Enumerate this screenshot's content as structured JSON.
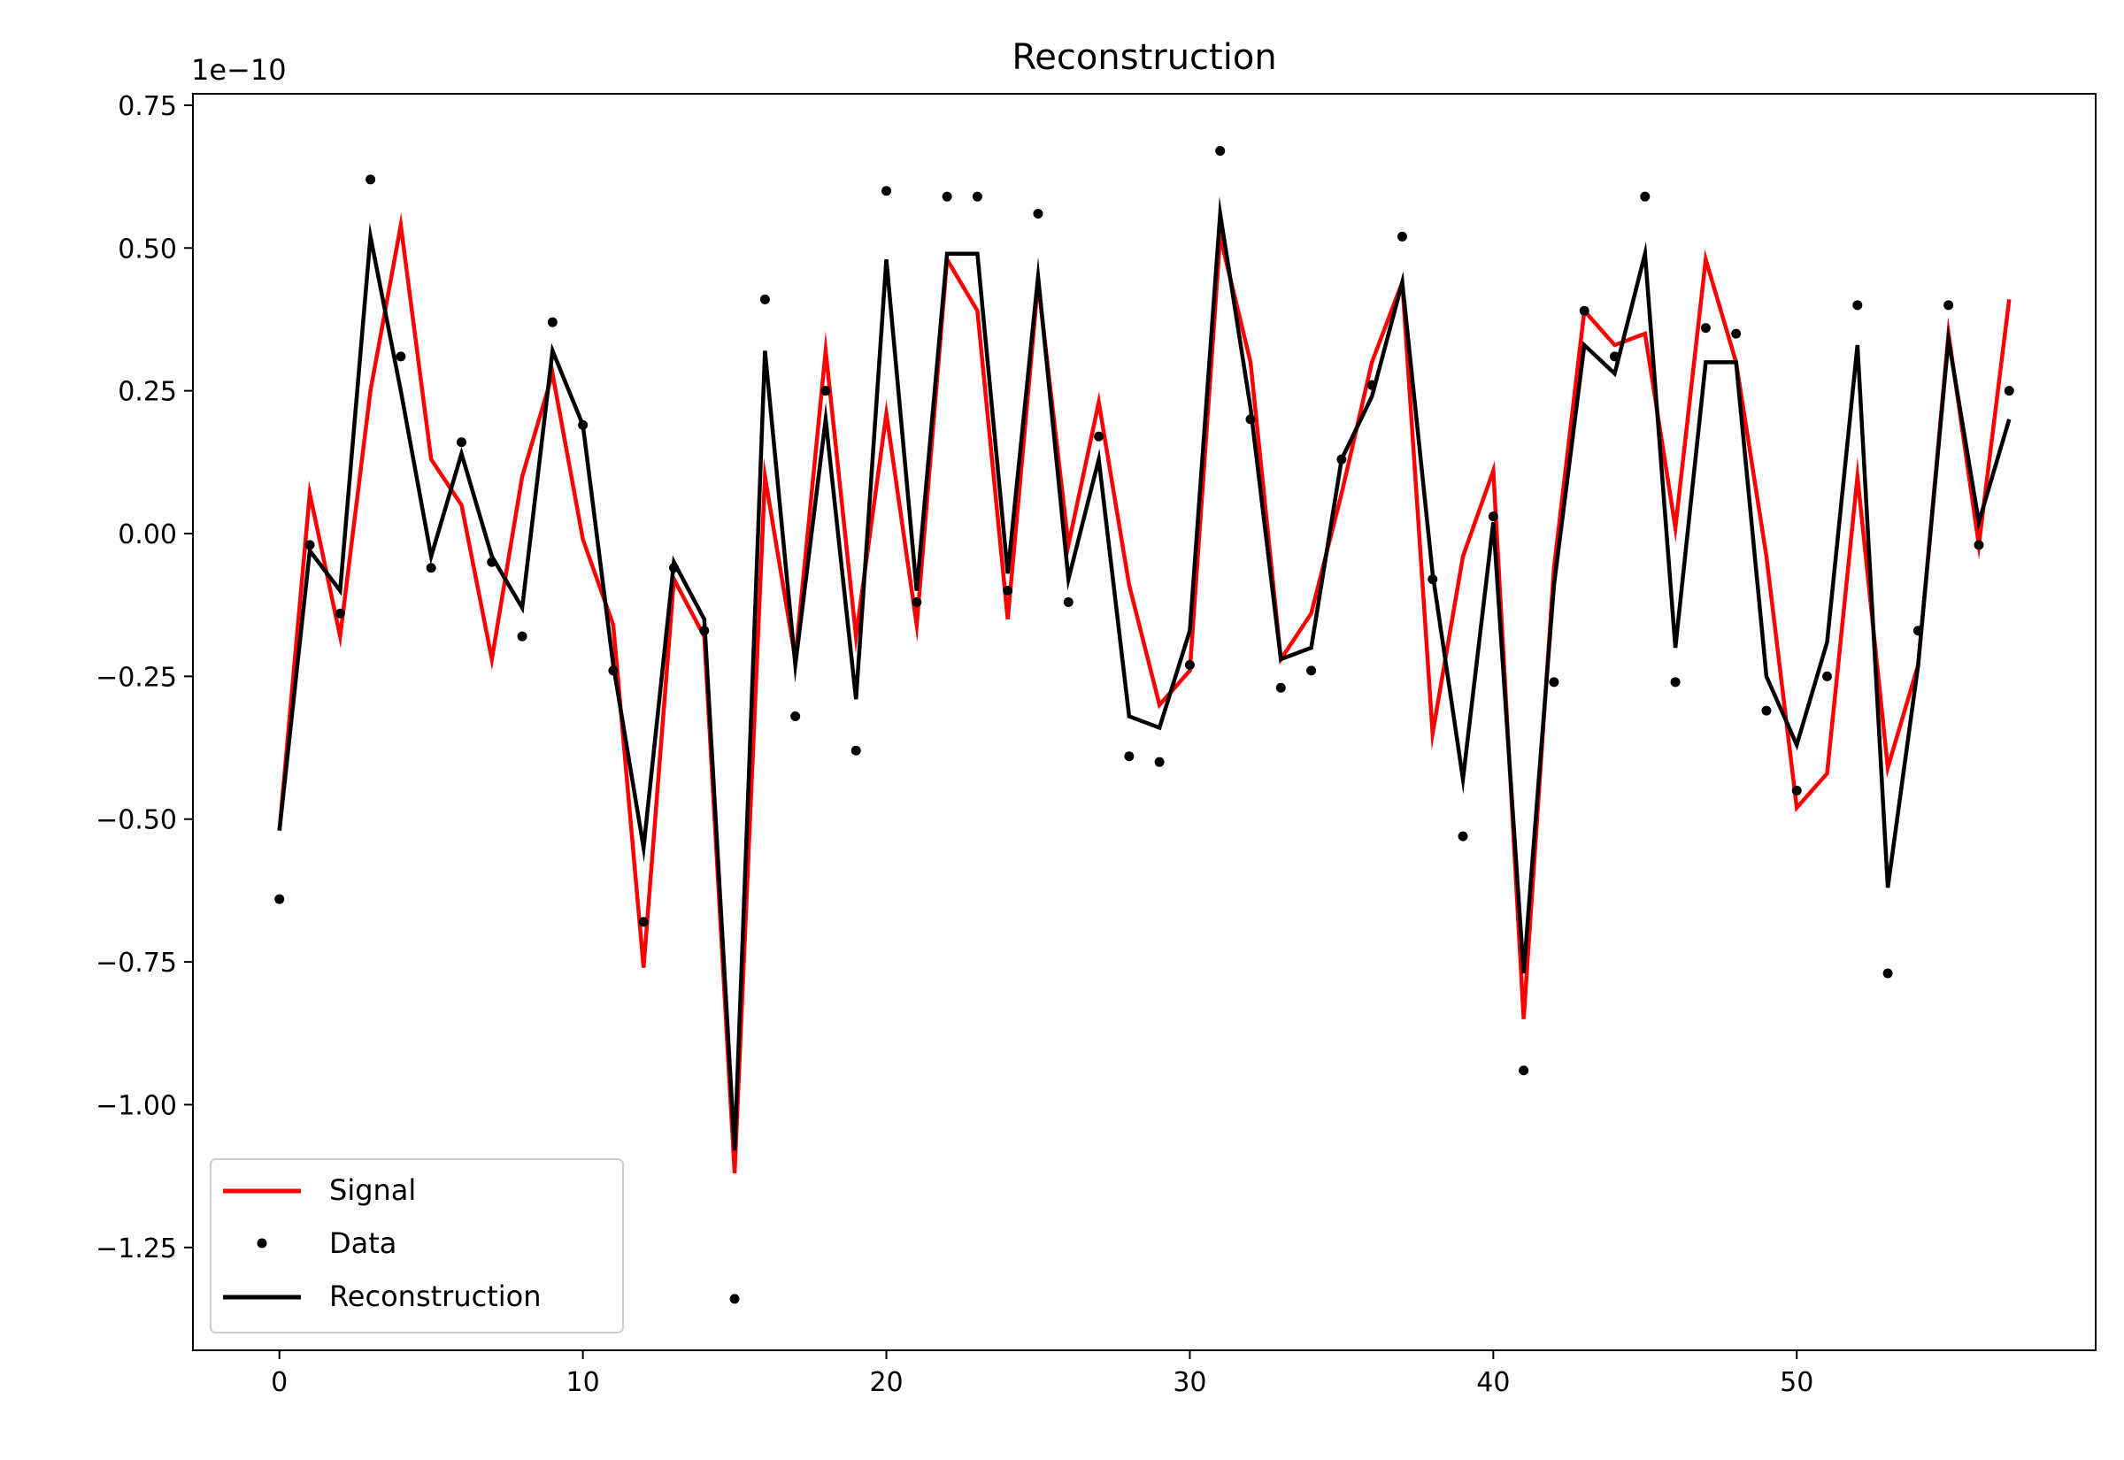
{
  "chart_data": {
    "type": "line",
    "title": "Reconstruction",
    "xlabel": "",
    "ylabel": "",
    "y_offset_label": "1e−10",
    "xlim": [
      -2.85,
      59.85
    ],
    "ylim": [
      -1.43,
      0.77
    ],
    "x_ticks": [
      0,
      10,
      20,
      30,
      40,
      50
    ],
    "x_tick_labels": [
      "0",
      "10",
      "20",
      "30",
      "40",
      "50"
    ],
    "y_ticks": [
      0.75,
      0.5,
      0.25,
      0.0,
      -0.25,
      -0.5,
      -0.75,
      -1.0,
      -1.25
    ],
    "y_tick_labels": [
      "0.75",
      "0.50",
      "0.25",
      "0.00",
      "−0.25",
      "−0.50",
      "−0.75",
      "−1.00",
      "−1.25"
    ],
    "grid": false,
    "legend_position": "lower-left",
    "series": [
      {
        "name": "Signal",
        "style": "line",
        "color": "#ff0000",
        "values": [
          -0.52,
          0.07,
          -0.18,
          0.25,
          0.54,
          0.13,
          0.05,
          -0.22,
          0.1,
          0.28,
          -0.01,
          -0.16,
          -0.76,
          -0.08,
          -0.18,
          -1.12,
          0.1,
          -0.22,
          0.32,
          -0.18,
          0.21,
          -0.16,
          0.48,
          0.39,
          -0.15,
          0.44,
          -0.02,
          0.23,
          -0.09,
          -0.3,
          -0.24,
          0.52,
          0.3,
          -0.22,
          -0.14,
          0.07,
          0.3,
          0.44,
          -0.35,
          -0.04,
          0.11,
          -0.85,
          -0.06,
          0.39,
          0.33,
          0.35,
          0.01,
          0.48,
          0.3,
          -0.04,
          -0.48,
          -0.42,
          0.1,
          -0.41,
          -0.23,
          0.35,
          -0.02,
          0.41
        ]
      },
      {
        "name": "Data",
        "style": "points",
        "color": "#000000",
        "values": [
          -0.64,
          -0.02,
          -0.14,
          0.62,
          0.31,
          -0.06,
          0.16,
          -0.05,
          -0.18,
          0.37,
          0.19,
          -0.24,
          -0.68,
          -0.06,
          -0.17,
          -1.34,
          0.41,
          -0.32,
          0.25,
          -0.38,
          0.6,
          -0.12,
          0.59,
          0.59,
          -0.1,
          0.56,
          -0.12,
          0.17,
          -0.39,
          -0.4,
          -0.23,
          0.67,
          0.2,
          -0.27,
          -0.24,
          0.13,
          0.26,
          0.52,
          -0.08,
          -0.53,
          0.03,
          -0.94,
          -0.26,
          0.39,
          0.31,
          0.59,
          -0.26,
          0.36,
          0.35,
          -0.31,
          -0.45,
          -0.25,
          0.4,
          -0.77,
          -0.17,
          0.4,
          -0.02,
          0.25
        ]
      },
      {
        "name": "Reconstruction",
        "style": "line",
        "color": "#000000",
        "values": [
          -0.52,
          -0.03,
          -0.1,
          0.52,
          0.25,
          -0.04,
          0.14,
          -0.04,
          -0.13,
          0.32,
          0.19,
          -0.23,
          -0.55,
          -0.05,
          -0.15,
          -1.08,
          0.32,
          -0.23,
          0.2,
          -0.29,
          0.48,
          -0.1,
          0.49,
          0.49,
          -0.07,
          0.45,
          -0.08,
          0.13,
          -0.32,
          -0.34,
          -0.17,
          0.56,
          0.22,
          -0.22,
          -0.2,
          0.13,
          0.24,
          0.44,
          -0.07,
          -0.43,
          0.02,
          -0.77,
          -0.09,
          0.33,
          0.28,
          0.49,
          -0.2,
          0.3,
          0.3,
          -0.25,
          -0.37,
          -0.19,
          0.33,
          -0.62,
          -0.23,
          0.34,
          0.02,
          0.2
        ]
      }
    ]
  }
}
